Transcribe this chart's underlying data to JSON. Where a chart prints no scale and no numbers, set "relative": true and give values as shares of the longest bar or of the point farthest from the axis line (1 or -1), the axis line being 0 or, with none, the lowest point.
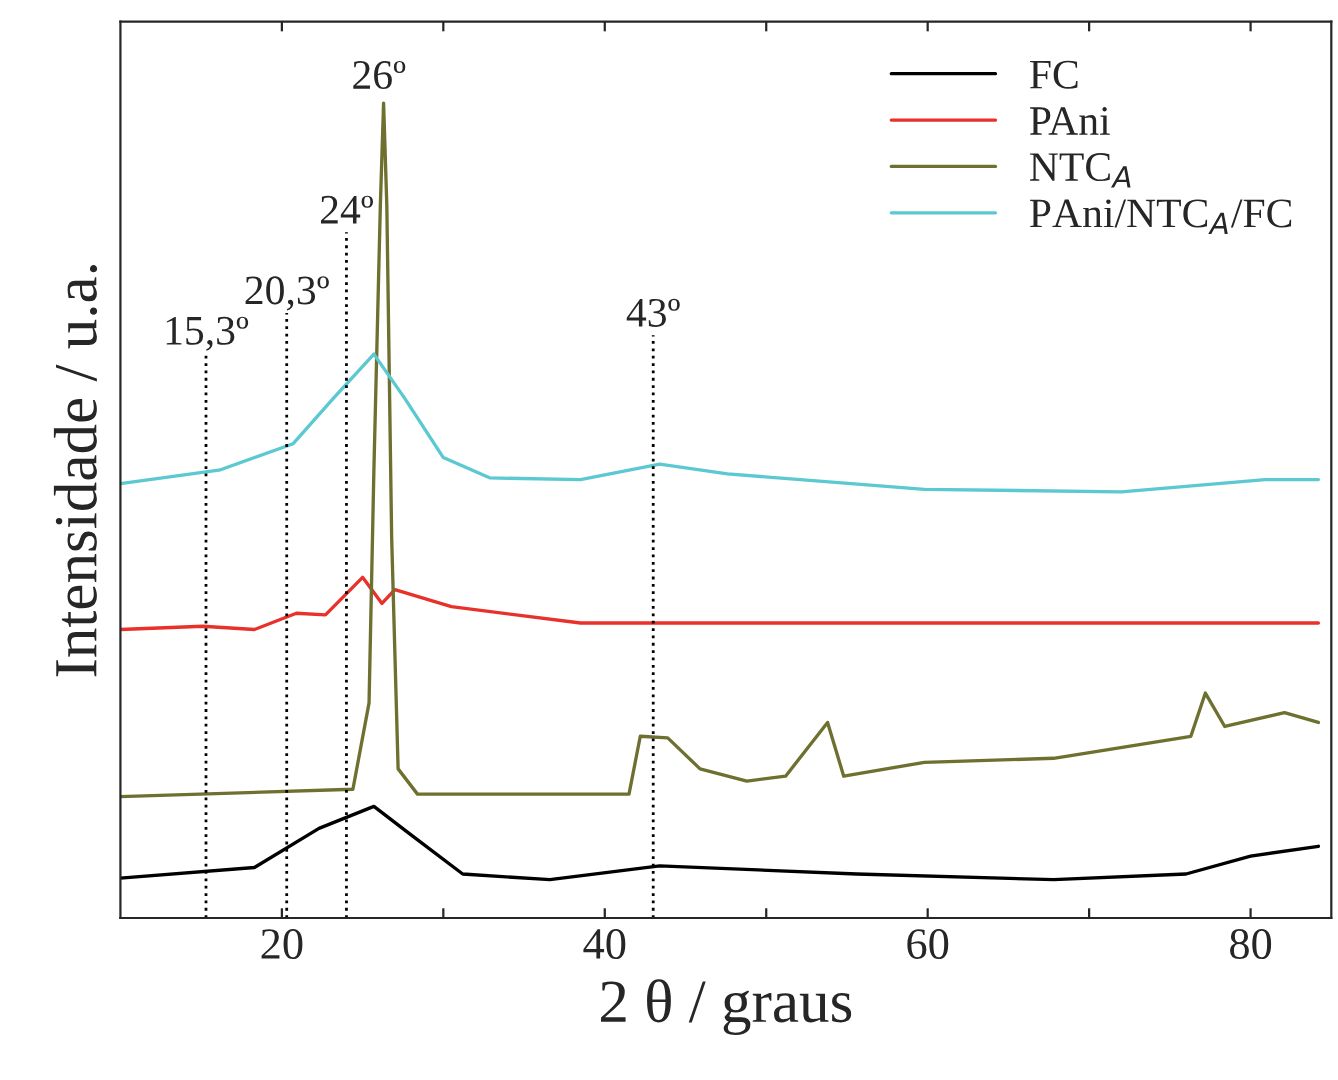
{
  "chart_data": {
    "type": "line",
    "xlabel": "2 θ / graus",
    "ylabel": "Intensidade / u.a.",
    "relative": true,
    "xlim": [
      10,
      85
    ],
    "xticks": [
      20,
      {
        "value": 30,
        "label": null
      },
      40,
      {
        "value": 50,
        "label": null
      },
      60,
      {
        "value": 70,
        "label": null
      },
      80
    ],
    "tick_labels": "x",
    "grid": false,
    "legend": "top right",
    "marker": "none",
    "line_style": "solid",
    "series": [
      {
        "name": "FC",
        "color": "#000000",
        "x": [
          10.0,
          18.3,
          22.3,
          25.7,
          28.0,
          31.2,
          36.6,
          43.4,
          55.6,
          67.8,
          76.0,
          80.0,
          84.2
        ],
        "values": [
          0.049,
          0.062,
          0.11,
          0.137,
          0.102,
          0.054,
          0.047,
          0.064,
          0.054,
          0.047,
          0.054,
          0.076,
          0.088
        ]
      },
      {
        "name": "PAni",
        "color": "#e8312a",
        "x": [
          10.0,
          15.1,
          18.3,
          20.9,
          22.7,
          25.0,
          26.2,
          27.0,
          30.5,
          38.5,
          59.8,
          84.2
        ],
        "values": [
          0.354,
          0.358,
          0.354,
          0.374,
          0.372,
          0.418,
          0.386,
          0.403,
          0.382,
          0.362,
          0.362,
          0.362
        ]
      },
      {
        "name": "NTC$_{A}$",
        "color": "#6e7030",
        "x": [
          10.0,
          24.4,
          25.4,
          25.7,
          26.1,
          26.3,
          26.5,
          26.8,
          27.2,
          28.4,
          41.5,
          42.2,
          43.9,
          45.9,
          48.8,
          51.2,
          53.8,
          54.8,
          59.8,
          67.8,
          76.3,
          77.2,
          78.4,
          82.1,
          84.2
        ],
        "values": [
          0.149,
          0.158,
          0.264,
          0.55,
          0.875,
          1.0,
          0.875,
          0.467,
          0.183,
          0.152,
          0.152,
          0.223,
          0.221,
          0.183,
          0.168,
          0.174,
          0.24,
          0.174,
          0.191,
          0.196,
          0.223,
          0.276,
          0.235,
          0.252,
          0.24
        ]
      },
      {
        "name": "PAni/NTC$_{A}$/FC",
        "color": "#5bc8d2",
        "x": [
          10.0,
          16.2,
          20.7,
          23.2,
          25.7,
          27.6,
          30.0,
          32.9,
          38.5,
          43.4,
          47.6,
          59.8,
          72.0,
          80.9,
          84.2
        ],
        "values": [
          0.533,
          0.55,
          0.582,
          0.638,
          0.692,
          0.638,
          0.565,
          0.54,
          0.538,
          0.557,
          0.545,
          0.526,
          0.523,
          0.538,
          0.538
        ]
      }
    ],
    "ref_lines": [
      {
        "axis": "x",
        "value": 15.3,
        "label": "15,3º",
        "line_style": "dotted",
        "color": "#000000"
      },
      {
        "axis": "x",
        "value": 20.3,
        "label": "20,3º",
        "line_style": "dotted",
        "color": "#000000"
      },
      {
        "axis": "x",
        "value": 24,
        "label": "24º",
        "line_style": "dotted",
        "color": "#000000"
      },
      {
        "axis": "x",
        "value": 43,
        "label": "43º",
        "line_style": "dotted",
        "color": "#000000"
      }
    ],
    "annotations": [
      {
        "text": "26º",
        "x": 26,
        "y": 1.0
      }
    ]
  }
}
